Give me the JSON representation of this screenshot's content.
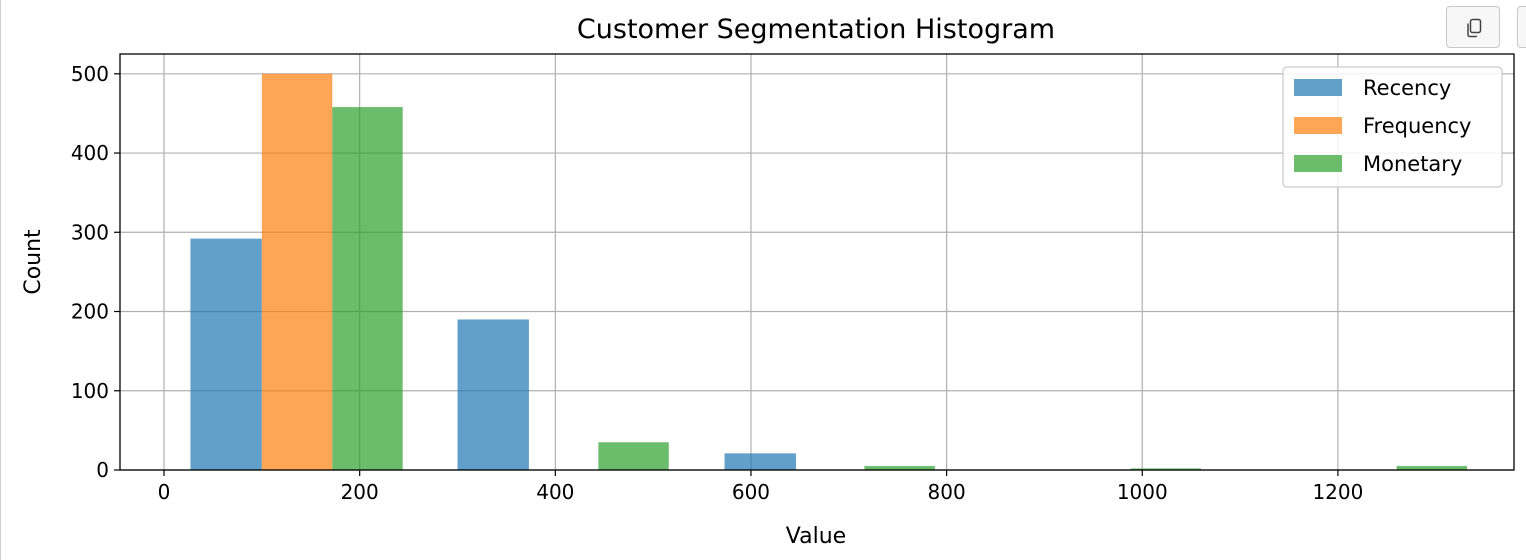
{
  "chart_data": {
    "type": "bar",
    "title": "Customer Segmentation Histogram",
    "xlabel": "Value",
    "ylabel": "Count",
    "xlim": [
      -45,
      1380
    ],
    "ylim": [
      0,
      525
    ],
    "xticks": [
      0,
      200,
      400,
      600,
      800,
      1000,
      1200
    ],
    "yticks": [
      0,
      100,
      200,
      300,
      400,
      500
    ],
    "grid": true,
    "legend_position": "top-right",
    "series": [
      {
        "name": "Recency",
        "color": "#1f77b4",
        "opacity": 0.7,
        "bins": [
          {
            "start": 27,
            "end": 100,
            "count": 292
          },
          {
            "start": 300,
            "end": 373,
            "count": 190
          },
          {
            "start": 573,
            "end": 646,
            "count": 21
          }
        ]
      },
      {
        "name": "Frequency",
        "color": "#ff7f0e",
        "opacity": 0.7,
        "bins": [
          {
            "start": 100,
            "end": 172,
            "count": 500
          }
        ]
      },
      {
        "name": "Monetary",
        "color": "#2ca02c",
        "opacity": 0.7,
        "bins": [
          {
            "start": 172,
            "end": 244,
            "count": 458
          },
          {
            "start": 444,
            "end": 516,
            "count": 35
          },
          {
            "start": 716,
            "end": 788,
            "count": 5
          },
          {
            "start": 988,
            "end": 1060,
            "count": 2
          },
          {
            "start": 1260,
            "end": 1332,
            "count": 5
          }
        ]
      }
    ]
  },
  "toolbar": {
    "copy_icon": "copy-icon"
  }
}
